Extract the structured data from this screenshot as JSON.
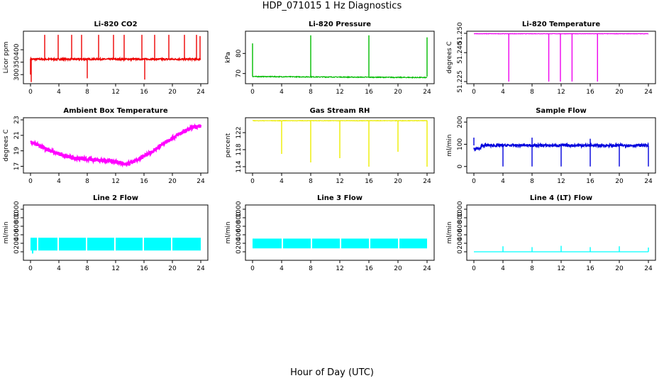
{
  "figure": {
    "title": "HDP_071015  1 Hz Diagnostics",
    "xlabel": "Hour of Day (UTC)"
  },
  "chart_data": [
    {
      "id": "co2",
      "type": "line",
      "title": "Li-820 CO2",
      "ylabel": "Licor ppm",
      "color": "#ee0000",
      "xlim": [
        0,
        24
      ],
      "ylim": [
        272,
        466
      ],
      "xticks": [
        0,
        4,
        8,
        12,
        16,
        20,
        24
      ],
      "yticks": [
        300,
        350,
        400
      ],
      "baseline": 362,
      "noise": 3,
      "spikes": [
        [
          0,
          300
        ],
        [
          0.1,
          270
        ],
        [
          2,
          460
        ],
        [
          3.9,
          460
        ],
        [
          5.8,
          460
        ],
        [
          7.2,
          460
        ],
        [
          8,
          285
        ],
        [
          9.6,
          460
        ],
        [
          11.7,
          460
        ],
        [
          13.2,
          460
        ],
        [
          15.7,
          460
        ],
        [
          16.1,
          280
        ],
        [
          17.5,
          460
        ],
        [
          19.5,
          460
        ],
        [
          21.7,
          460
        ],
        [
          23.4,
          460
        ],
        [
          23.9,
          455
        ]
      ]
    },
    {
      "id": "pressure",
      "type": "line",
      "title": "Li-820 Pressure",
      "ylabel": "kPa",
      "color": "#00bb00",
      "xlim": [
        0,
        24
      ],
      "ylim": [
        66,
        90
      ],
      "xticks": [
        0,
        4,
        8,
        12,
        16,
        20,
        24
      ],
      "yticks": [
        70,
        80
      ],
      "baseline": 68.5,
      "noise": 0.2,
      "drift": -0.5,
      "spikes": [
        [
          0,
          85
        ],
        [
          8,
          89
        ],
        [
          16,
          89
        ],
        [
          24,
          88
        ]
      ]
    },
    {
      "id": "licor-temp",
      "type": "line",
      "title": "Li-820 Temperature",
      "ylabel": "degrees C",
      "color": "#ee00ee",
      "xlim": [
        0,
        24
      ],
      "ylim": [
        51.225,
        51.25
      ],
      "xticks": [
        0,
        4,
        8,
        12,
        16,
        20,
        24
      ],
      "yticks": [
        51.225,
        51.24,
        51.25
      ],
      "ytick_labels": [
        "51.225",
        "51.240",
        "51.250"
      ],
      "baseline": 51.2498,
      "noise": 0.0001,
      "spikes": [
        [
          4.8,
          51.225
        ],
        [
          10.3,
          51.225
        ],
        [
          11.9,
          51.225
        ],
        [
          13.5,
          51.225
        ],
        [
          17,
          51.225
        ]
      ]
    },
    {
      "id": "box-temp",
      "type": "line",
      "title": "Ambient Box Temperature",
      "ylabel": "degrees C",
      "color": "#ff00ff",
      "xlim": [
        0,
        24
      ],
      "ylim": [
        16.4,
        23
      ],
      "xticks": [
        0,
        4,
        8,
        12,
        16,
        20,
        24
      ],
      "yticks": [
        17,
        19,
        21,
        23
      ],
      "curve": [
        [
          0,
          20.2
        ],
        [
          2,
          19.3
        ],
        [
          4,
          18.6
        ],
        [
          6,
          18.1
        ],
        [
          8,
          17.9
        ],
        [
          10,
          17.8
        ],
        [
          12,
          17.6
        ],
        [
          13.5,
          17.2
        ],
        [
          15,
          17.8
        ],
        [
          17,
          18.8
        ],
        [
          19,
          20.1
        ],
        [
          21,
          21.2
        ],
        [
          23,
          22.1
        ],
        [
          24,
          22.2
        ]
      ],
      "band": 0.5
    },
    {
      "id": "rh",
      "type": "line",
      "title": "Gas Stream RH",
      "ylabel": "percent",
      "color": "#eeee00",
      "xlim": [
        0,
        24
      ],
      "ylim": [
        113,
        125
      ],
      "xticks": [
        0,
        4,
        8,
        12,
        16,
        20,
        24
      ],
      "yticks": [
        114,
        118,
        122
      ],
      "baseline": 124.8,
      "noise": 0.05,
      "spikes": [
        [
          4,
          117
        ],
        [
          8,
          115
        ],
        [
          12,
          116
        ],
        [
          16,
          114
        ],
        [
          20,
          117.5
        ],
        [
          24,
          114
        ]
      ]
    },
    {
      "id": "sample-flow",
      "type": "line",
      "title": "Sample Flow",
      "ylabel": "ml/min",
      "color": "#0000dd",
      "xlim": [
        0,
        24
      ],
      "ylim": [
        -20,
        210
      ],
      "xticks": [
        0,
        4,
        8,
        12,
        16,
        20,
        24
      ],
      "yticks": [
        0,
        100,
        200
      ],
      "baseline": 95,
      "noise": 6,
      "first_hour_dip": 80,
      "spikes": [
        [
          0,
          130
        ],
        [
          4,
          0
        ],
        [
          8,
          0
        ],
        [
          8,
          130
        ],
        [
          12,
          0
        ],
        [
          16,
          0
        ],
        [
          16,
          125
        ],
        [
          20,
          0
        ],
        [
          24,
          0
        ]
      ]
    },
    {
      "id": "line2-flow",
      "type": "line",
      "title": "Line 2 Flow",
      "ylabel": "ml/min",
      "color": "#00ffff",
      "xlim": [
        0,
        24
      ],
      "ylim": [
        -150,
        1050
      ],
      "xticks": [
        0,
        4,
        8,
        12,
        16,
        20,
        24
      ],
      "yticks": [
        0,
        200,
        400,
        600,
        800,
        1000
      ],
      "band_low": 30,
      "band_high": 330,
      "gaps": [
        0.9,
        3.8,
        7.8,
        11.8,
        15.8,
        19.8
      ]
    },
    {
      "id": "line3-flow",
      "type": "line",
      "title": "Line 3 Flow",
      "ylabel": "ml/min",
      "color": "#00ffff",
      "xlim": [
        0,
        24
      ],
      "ylim": [
        -150,
        1050
      ],
      "xticks": [
        0,
        4,
        8,
        12,
        16,
        20,
        24
      ],
      "yticks": [
        0,
        200,
        400,
        600,
        800,
        1000
      ],
      "band_low": 80,
      "band_high": 310,
      "gaps": [
        4,
        8,
        12,
        16,
        20
      ]
    },
    {
      "id": "line4-flow",
      "type": "line",
      "title": "Line 4 (LT) Flow",
      "ylabel": "ml/min",
      "color": "#00ffff",
      "xlim": [
        0,
        24
      ],
      "ylim": [
        -150,
        1050
      ],
      "xticks": [
        0,
        4,
        8,
        12,
        16,
        20,
        24
      ],
      "yticks": [
        0,
        200,
        400,
        600,
        800,
        1000
      ],
      "baseline": 0,
      "noise": 0,
      "spikes": [
        [
          4,
          130
        ],
        [
          8,
          110
        ],
        [
          12,
          140
        ],
        [
          16,
          110
        ],
        [
          20,
          130
        ],
        [
          24,
          100
        ]
      ]
    }
  ]
}
